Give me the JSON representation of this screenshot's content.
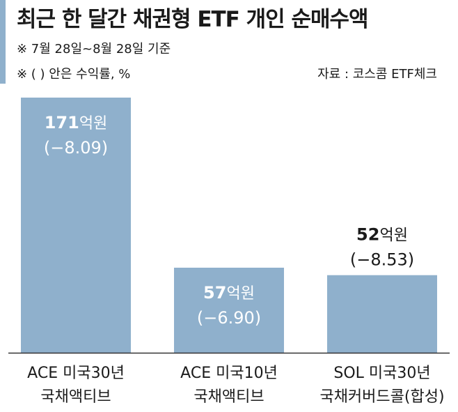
{
  "header": {
    "title": "최근 한 달간 채권형 ETF 개인 순매수액",
    "note1": "※ 7월 28일~8월 28일 기준",
    "note2": "※ (  ) 안은 수익률, %",
    "source": "자료 : 코스콤 ETF체크"
  },
  "colors": {
    "bar": "#8fb0cc",
    "accent": "#8fb0cc",
    "label_on_bar": "#ffffff",
    "label": "#1a1a1a"
  },
  "chart_data": {
    "type": "bar",
    "categories": [
      [
        "ACE 미국30년",
        "국채액티브"
      ],
      [
        "ACE 미국10년",
        "국채액티브"
      ],
      [
        "SOL 미국30년",
        "국채커버드콜(합성)"
      ]
    ],
    "values": [
      171,
      57,
      52
    ],
    "unit": "억원",
    "returns": [
      "(−8.09)",
      "(−6.90)",
      "(−8.53)"
    ],
    "ylim": [
      0,
      180
    ],
    "title": "최근 한 달간 채권형 ETF 개인 순매수액"
  }
}
